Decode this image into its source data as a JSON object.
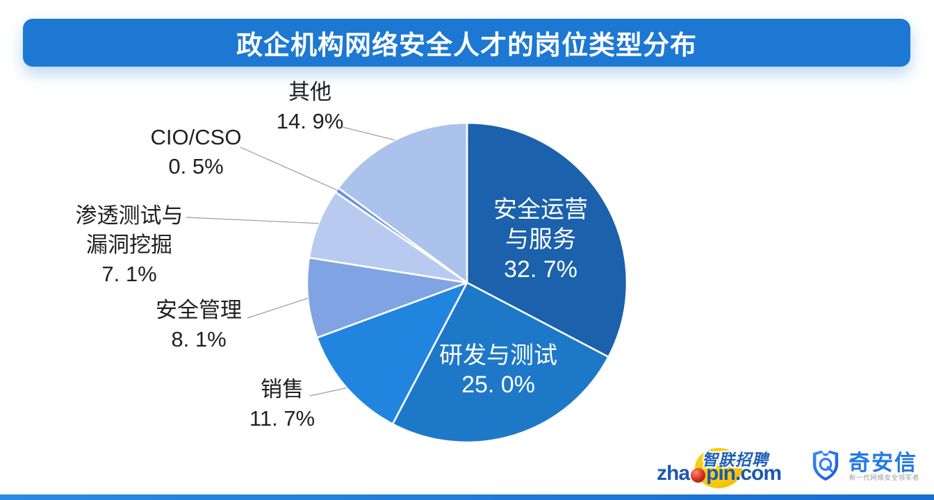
{
  "title": "政企机构网络安全人才的岗位类型分布",
  "chart_data": {
    "type": "pie",
    "title": "政企机构网络安全人才的岗位类型分布",
    "direction": "clockwise",
    "start_angle_deg": 0,
    "total": 100,
    "slices": [
      {
        "label": "安全运营与服务",
        "value": 32.7,
        "pct_text": "32. 7%",
        "name_lines": [
          "安全运营",
          "与服务"
        ],
        "color": "#1b61ac",
        "label_position": "inside"
      },
      {
        "label": "研发与测试",
        "value": 25.0,
        "pct_text": "25. 0%",
        "name_lines": [
          "研发与测试"
        ],
        "color": "#1e78c8",
        "label_position": "inside"
      },
      {
        "label": "销售",
        "value": 11.7,
        "pct_text": "11. 7%",
        "name_lines": [
          "销售"
        ],
        "color": "#2185e0",
        "label_position": "outside"
      },
      {
        "label": "安全管理",
        "value": 8.1,
        "pct_text": "8. 1%",
        "name_lines": [
          "安全管理"
        ],
        "color": "#80a4e3",
        "label_position": "outside"
      },
      {
        "label": "渗透测试与漏洞挖掘",
        "value": 7.1,
        "pct_text": "7. 1%",
        "name_lines": [
          "渗透测试与",
          "漏洞挖掘"
        ],
        "color": "#b8caf0",
        "label_position": "outside"
      },
      {
        "label": "CIO/CSO",
        "value": 0.5,
        "pct_text": "0. 5%",
        "name_lines": [
          "CIO/CSO"
        ],
        "color": "#6a92d6",
        "label_position": "outside"
      },
      {
        "label": "其他",
        "value": 14.9,
        "pct_text": "14. 9%",
        "name_lines": [
          "其他"
        ],
        "color": "#aac2ec",
        "label_position": "outside"
      }
    ],
    "inside_text_color": "#ffffff",
    "outside_text_color": "#1f1f1f",
    "leader_line_color": "#999999",
    "slice_border_color": "#ffffff",
    "legend": "none"
  },
  "footer": {
    "zhaopin": {
      "cn": "智联招聘",
      "word_left": "zha",
      "word_right": "pin.com",
      "brand_blue": "#1c57b0",
      "yellow": "#f2b600",
      "red": "#c9281e"
    },
    "qianxin": {
      "name": "奇安信",
      "tagline": "新一代网络安全领军者",
      "brand_blue": "#2277ea"
    }
  },
  "colors": {
    "banner": "#1c78d3",
    "bottom_bar_left": "#2a8ae4",
    "bottom_bar_right": "#186dd0"
  }
}
